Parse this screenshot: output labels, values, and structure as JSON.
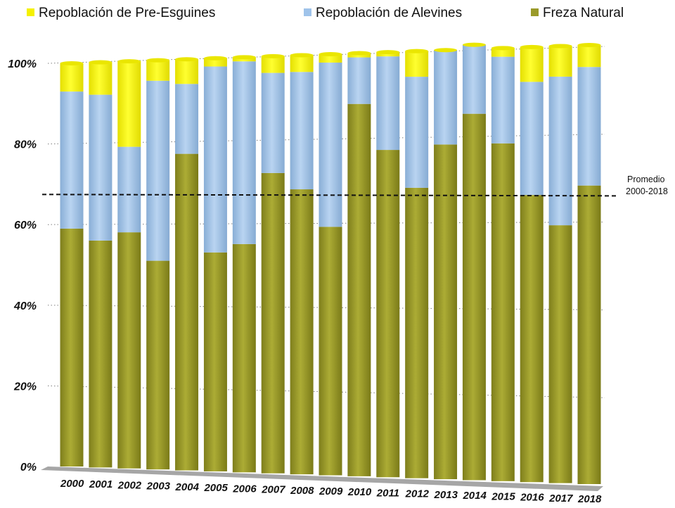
{
  "legend": {
    "items": [
      {
        "label": "Repoblación de Pre-Esguines",
        "color": "#f5f100"
      },
      {
        "label": "Repoblación de Alevines",
        "color": "#9fc3ea"
      },
      {
        "label": "Freza Natural",
        "color": "#9a9a2a"
      }
    ]
  },
  "average_label": {
    "line1": "Promedio",
    "line2": "2000-2018"
  },
  "colors": {
    "yellow": "#f5f100",
    "blue": "#9fc3ea",
    "olive": "#9a9a2a",
    "floor": "#a6a6a6"
  },
  "chart_data": {
    "type": "bar",
    "stacked": true,
    "title": "",
    "xlabel": "",
    "ylabel": "",
    "y_ticks": [
      "0%",
      "20%",
      "40%",
      "60%",
      "80%",
      "100%"
    ],
    "ylim": [
      0,
      100
    ],
    "grid": true,
    "legend_position": "top",
    "categories": [
      "2000",
      "2001",
      "2002",
      "2003",
      "2004",
      "2005",
      "2006",
      "2007",
      "2008",
      "2009",
      "2010",
      "2011",
      "2012",
      "2013",
      "2014",
      "2015",
      "2016",
      "2017",
      "2018"
    ],
    "series": [
      {
        "name": "Freza Natural",
        "values": [
          59,
          56,
          58,
          51,
          77,
          53,
          55,
          72,
          68,
          59,
          88,
          77,
          68,
          78,
          85,
          78,
          66,
          59,
          68
        ]
      },
      {
        "name": "Repoblación de Alevines",
        "values": [
          34,
          36,
          21,
          44,
          17,
          45,
          44,
          24,
          28,
          39,
          11,
          22,
          26,
          22,
          16,
          20,
          26,
          34,
          27
        ]
      },
      {
        "name": "Repoblación de Pre-Esguines",
        "values": [
          7,
          8,
          21,
          5,
          6,
          2,
          1,
          4,
          4,
          2,
          1,
          1,
          6,
          0,
          0,
          2,
          8,
          7,
          5
        ]
      }
    ],
    "reference_line": {
      "label": "Promedio 2000-2018",
      "value": 68
    }
  }
}
